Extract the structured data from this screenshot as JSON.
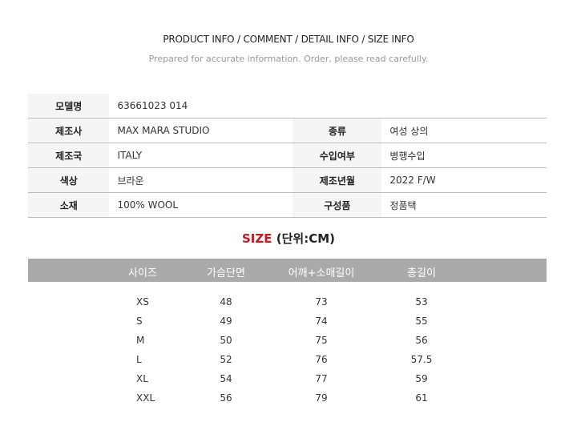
{
  "header": {
    "title": "PRODUCT INFO / COMMENT / DETAIL INFO / SIZE INFO",
    "subtitle": "Prepared for accurate information. Order, please read carefully."
  },
  "info": [
    {
      "l1": "모델명",
      "v1": "63661023 014",
      "l2": "",
      "v2": ""
    },
    {
      "l1": "제조사",
      "v1": "MAX MARA STUDIO",
      "l2": "종류",
      "v2": "여성 상의"
    },
    {
      "l1": "제조국",
      "v1": "ITALY",
      "l2": "수입여부",
      "v2": "병행수입"
    },
    {
      "l1": "색상",
      "v1": "브라운",
      "l2": "제조년월",
      "v2": "2022 F/W"
    },
    {
      "l1": "소재",
      "v1": "100% WOOL",
      "l2": "구성품",
      "v2": "정품택"
    }
  ],
  "size": {
    "title_red": "SIZE",
    "title_rest": " (단위:CM)",
    "accent": "#d0121b",
    "headers": [
      "사이즈",
      "가슴단면",
      "어깨+소매길이",
      "총길이"
    ],
    "rows": [
      [
        "XS",
        "48",
        "73",
        "53"
      ],
      [
        "S",
        "49",
        "74",
        "55"
      ],
      [
        "M",
        "50",
        "75",
        "56"
      ],
      [
        "L",
        "52",
        "76",
        "57.5"
      ],
      [
        "XL",
        "54",
        "77",
        "59"
      ],
      [
        "XXL",
        "56",
        "79",
        "61"
      ]
    ]
  }
}
